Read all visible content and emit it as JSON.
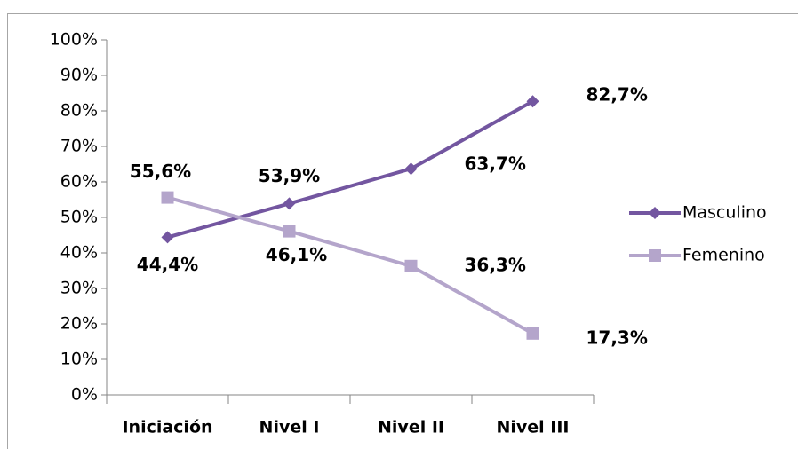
{
  "chart_data": {
    "type": "line",
    "categories": [
      "Iniciación",
      "Nivel I",
      "Nivel II",
      "Nivel III"
    ],
    "series": [
      {
        "name": "Masculino",
        "color": "#7356a0",
        "marker": "diamond",
        "values": [
          44.4,
          53.9,
          63.7,
          82.7
        ],
        "value_labels": [
          "44,4%",
          "53,9%",
          "63,7%",
          "82,7%"
        ]
      },
      {
        "name": "Femenino",
        "color": "#b4a5cb",
        "marker": "square",
        "values": [
          55.6,
          46.1,
          36.3,
          17.3
        ],
        "value_labels": [
          "55,6%",
          "46,1%",
          "36,3%",
          "17,3%"
        ]
      }
    ],
    "ylim": [
      0,
      100
    ],
    "yticks": [
      {
        "value": 0,
        "label": "0%"
      },
      {
        "value": 10,
        "label": "10%"
      },
      {
        "value": 20,
        "label": "20%"
      },
      {
        "value": 30,
        "label": "30%"
      },
      {
        "value": 40,
        "label": "40%"
      },
      {
        "value": 50,
        "label": "50%"
      },
      {
        "value": 60,
        "label": "60%"
      },
      {
        "value": 70,
        "label": "70%"
      },
      {
        "value": 80,
        "label": "80%"
      },
      {
        "value": 90,
        "label": "90%"
      },
      {
        "value": 100,
        "label": "100%"
      }
    ],
    "grid": false,
    "legend": "right"
  }
}
